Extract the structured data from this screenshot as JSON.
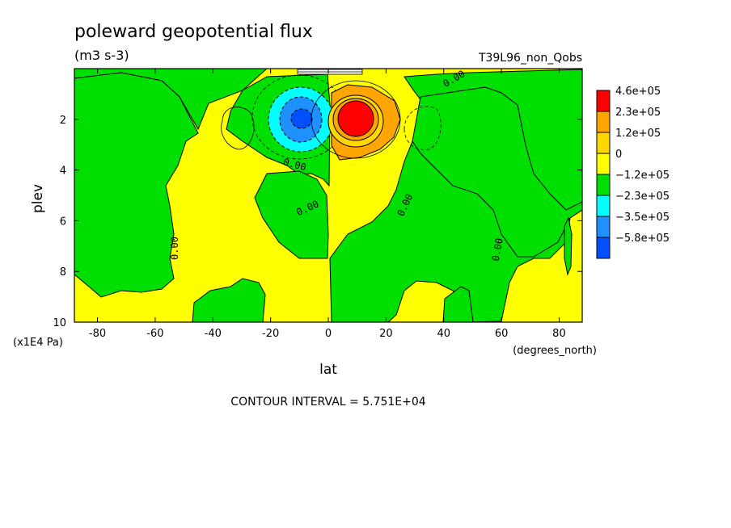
{
  "chart_data": {
    "type": "heatmap",
    "title": "poleward geopotential flux",
    "units": "(m3 s-3)",
    "run_label": "T39L96_non_Qobs",
    "xlabel": "lat",
    "x_units": "(degrees_north)",
    "ylabel": "plev",
    "y_units": "(x1E4 Pa)",
    "xlim": [
      -88,
      88
    ],
    "ylim": [
      10,
      0
    ],
    "x_ticks": [
      -80,
      -60,
      -40,
      -20,
      0,
      20,
      40,
      60,
      80
    ],
    "y_ticks": [
      2,
      4,
      6,
      8,
      10
    ],
    "contour_label": "0.00",
    "contour_interval_text": "CONTOUR INTERVAL = 5.751E+04",
    "legend_levels": [
      "4.6e+05",
      "2.3e+05",
      "1.2e+05",
      "0",
      "−1.2e+05",
      "−2.3e+05",
      "−3.5e+05",
      "−5.8e+05"
    ],
    "legend_colors": [
      "#ff0000",
      "#ffa500",
      "#ffd700",
      "#ffff00",
      "#00e000",
      "#00ffff",
      "#1e90ff",
      "#0050ff"
    ],
    "features": [
      {
        "kind": "positive_max",
        "lat": 8,
        "plev": 2.0,
        "band": "4.6e+05"
      },
      {
        "kind": "negative_min",
        "lat": -10,
        "plev": 2.0,
        "band": "−3.5e+05"
      }
    ]
  }
}
